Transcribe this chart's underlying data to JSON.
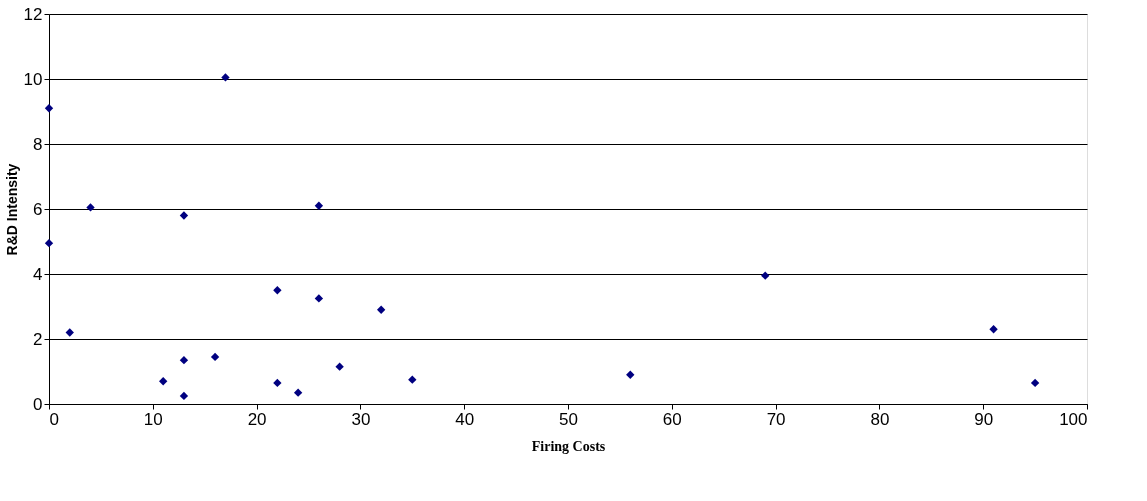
{
  "chart_data": {
    "type": "scatter",
    "xlabel": "Firing Costs",
    "ylabel": "R&D Intensity",
    "x": [
      0,
      0,
      2,
      4,
      11,
      13,
      13,
      13,
      16,
      17,
      22,
      22,
      24,
      26,
      26,
      28,
      32,
      35,
      56,
      69,
      91,
      95
    ],
    "series": [
      {
        "color": "#000080",
        "values": [
          9.1,
          4.95,
          2.2,
          6.05,
          0.7,
          5.8,
          1.35,
          0.25,
          1.45,
          10.05,
          3.5,
          0.65,
          0.35,
          6.1,
          3.25,
          1.15,
          2.9,
          0.75,
          0.9,
          3.95,
          2.3,
          0.65
        ]
      }
    ],
    "xlim": [
      0,
      100
    ],
    "xticks": [
      0,
      10,
      20,
      30,
      40,
      50,
      60,
      70,
      80,
      90,
      100
    ],
    "ylim": [
      0,
      12
    ],
    "yticks": [
      0,
      2,
      4,
      6,
      8,
      10,
      12
    ],
    "grid": "y",
    "marker": "diamond",
    "legend": false
  }
}
